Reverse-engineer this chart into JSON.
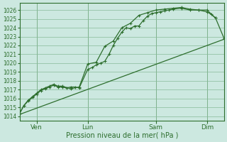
{
  "title": "",
  "xlabel": "Pression niveau de la mer( hPa )",
  "bg_color": "#cce8e0",
  "grid_color": "#88bb99",
  "line_color": "#2d6e2d",
  "ylim": [
    1013.5,
    1026.8
  ],
  "xlim": [
    0,
    96
  ],
  "xtick_positions": [
    8,
    32,
    64,
    88
  ],
  "xtick_labels": [
    "Ven",
    "Lun",
    "Sam",
    "Dim"
  ],
  "ytick_positions": [
    1014,
    1015,
    1016,
    1017,
    1018,
    1019,
    1020,
    1021,
    1022,
    1023,
    1024,
    1025,
    1026
  ],
  "line1_x": [
    0,
    96
  ],
  "line1_y": [
    1014.2,
    1022.7
  ],
  "line2_x": [
    0,
    2,
    4,
    6,
    8,
    10,
    12,
    14,
    16,
    18,
    20,
    22,
    24,
    26,
    28,
    32,
    34,
    36,
    38,
    40,
    42,
    44,
    46,
    48,
    50,
    52,
    54,
    56,
    58,
    60,
    62,
    64,
    66,
    68,
    70,
    72,
    76,
    80,
    84,
    88,
    90,
    92
  ],
  "line2_y": [
    1014.3,
    1015.2,
    1015.7,
    1016.1,
    1016.5,
    1016.9,
    1017.1,
    1017.3,
    1017.5,
    1017.3,
    1017.3,
    1017.2,
    1017.3,
    1017.3,
    1017.2,
    1019.3,
    1019.5,
    1019.8,
    1020.0,
    1020.2,
    1021.0,
    1022.0,
    1022.8,
    1023.5,
    1024.0,
    1023.9,
    1024.2,
    1024.2,
    1024.8,
    1025.3,
    1025.6,
    1025.7,
    1025.8,
    1025.9,
    1026.0,
    1026.1,
    1026.2,
    1026.0,
    1026.0,
    1025.8,
    1025.5,
    1025.1
  ],
  "line3_x": [
    0,
    2,
    4,
    6,
    8,
    10,
    12,
    14,
    16,
    18,
    20,
    24,
    28,
    32,
    36,
    40,
    44,
    48,
    52,
    56,
    60,
    64,
    68,
    72,
    76,
    80,
    84,
    88,
    92,
    96
  ],
  "line3_y": [
    1014.3,
    1015.2,
    1015.8,
    1016.2,
    1016.6,
    1017.0,
    1017.2,
    1017.4,
    1017.6,
    1017.4,
    1017.4,
    1017.1,
    1017.3,
    1019.9,
    1020.1,
    1021.9,
    1022.5,
    1024.0,
    1024.5,
    1025.4,
    1025.7,
    1026.0,
    1026.1,
    1026.2,
    1026.3,
    1026.1,
    1026.0,
    1026.0,
    1025.1,
    1022.8
  ],
  "vline_positions": [
    8,
    32,
    64,
    88
  ]
}
